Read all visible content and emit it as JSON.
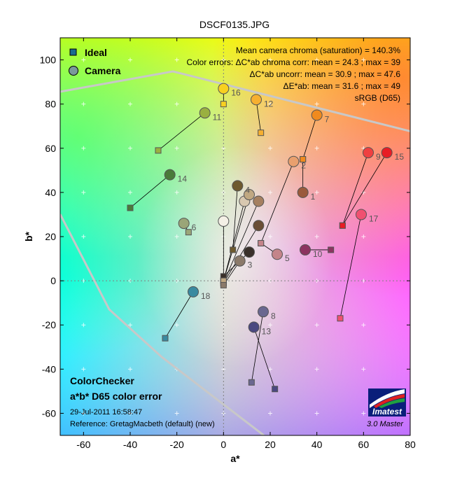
{
  "chart_data": {
    "type": "scatter",
    "title": "DSCF0135.JPG",
    "xlabel": "a*",
    "ylabel": "b*",
    "xlim": [
      -70,
      80
    ],
    "ylim": [
      -70,
      110
    ],
    "x_ticks": [
      "-60",
      "-40",
      "-20",
      "0",
      "20",
      "40",
      "60",
      "80"
    ],
    "y_ticks": [
      "-60",
      "-40",
      "-20",
      "0",
      "20",
      "40",
      "60",
      "80",
      "100"
    ],
    "grid": true,
    "legend": {
      "placement": "top-left",
      "entries": [
        "Ideal",
        "Camera"
      ]
    },
    "stats_lines": [
      "Mean camera chroma (saturation) = 140.3%",
      "Color errors: ΔC*ab chroma corr:  mean = 24.3 ;  max = 39",
      "ΔC*ab uncorr:  mean = 30.9 ;  max = 47.6",
      "ΔE*ab:  mean = 31.6 ;  max = 49",
      "sRGB (D65)"
    ],
    "bottom_text": {
      "line1": "ColorChecker",
      "line2": "a*b* D65 color error",
      "date": "29-Jul-2011 16:58:47",
      "reference": "Reference: GretagMacbeth (default) (new)"
    },
    "logo": {
      "name": "Imatest",
      "version": "3.0  Master"
    },
    "patches": [
      {
        "label": "1",
        "ideal": [
          34,
          55
        ],
        "camera": [
          34,
          40
        ],
        "color": "#9a5a3c"
      },
      {
        "label": "2",
        "ideal": [
          16,
          17
        ],
        "camera": [
          30,
          54
        ],
        "color": "#e9a06e"
      },
      {
        "label": "3",
        "ideal": [
          0,
          -2
        ],
        "camera": [
          7,
          9
        ],
        "color": "#8b7a6a"
      },
      {
        "label": "4",
        "ideal": [
          4,
          14
        ],
        "camera": [
          6,
          43
        ],
        "color": "#6e5a2e"
      },
      {
        "label": "5",
        "ideal": [
          16,
          17
        ],
        "camera": [
          23,
          12
        ],
        "color": "#c4848a"
      },
      {
        "label": "6",
        "ideal": [
          -15,
          22
        ],
        "camera": [
          -17,
          26
        ],
        "color": "#9aa578"
      },
      {
        "label": "7",
        "ideal": [
          34,
          55
        ],
        "camera": [
          40,
          75
        ],
        "color": "#f08a1e"
      },
      {
        "label": "8",
        "ideal": [
          12,
          -46
        ],
        "camera": [
          17,
          -14
        ],
        "color": "#6a6890"
      },
      {
        "label": "9",
        "ideal": [
          51,
          25
        ],
        "camera": [
          62,
          58
        ],
        "color": "#f04040"
      },
      {
        "label": "10",
        "ideal": [
          46,
          14
        ],
        "camera": [
          35,
          14
        ],
        "color": "#8c3460"
      },
      {
        "label": "11",
        "ideal": [
          -28,
          59
        ],
        "camera": [
          -8,
          76
        ],
        "color": "#9ab040"
      },
      {
        "label": "12",
        "ideal": [
          16,
          67
        ],
        "camera": [
          14,
          82
        ],
        "color": "#f6b030"
      },
      {
        "label": "13",
        "ideal": [
          22,
          -49
        ],
        "camera": [
          13,
          -21
        ],
        "color": "#4a4880"
      },
      {
        "label": "14",
        "ideal": [
          -40,
          33
        ],
        "camera": [
          -23,
          48
        ],
        "color": "#4a7a3a"
      },
      {
        "label": "15",
        "ideal": [
          51,
          25
        ],
        "camera": [
          70,
          58
        ],
        "color": "#e81c24"
      },
      {
        "label": "16",
        "ideal": [
          0,
          80
        ],
        "camera": [
          0,
          87
        ],
        "color": "#f8d020"
      },
      {
        "label": "17",
        "ideal": [
          50,
          -17
        ],
        "camera": [
          59,
          30
        ],
        "color": "#f05070"
      },
      {
        "label": "18",
        "ideal": [
          -25,
          -26
        ],
        "camera": [
          -13,
          -5
        ],
        "color": "#3a8aa0"
      }
    ],
    "neutral_points": [
      {
        "ideal": [
          0,
          0
        ],
        "camera": [
          0,
          27
        ],
        "color": "#f4f0e6"
      },
      {
        "ideal": [
          0,
          2
        ],
        "camera": [
          11,
          13
        ],
        "color": "#3a302a"
      },
      {
        "ideal": [
          0,
          0
        ],
        "camera": [
          9,
          36
        ],
        "color": "#d8c8b0"
      },
      {
        "ideal": [
          0,
          -1
        ],
        "camera": [
          15,
          36
        ],
        "color": "#a58060"
      },
      {
        "ideal": [
          0,
          -1
        ],
        "camera": [
          15,
          25
        ],
        "color": "#6b4e36"
      },
      {
        "ideal": [
          0,
          0
        ],
        "camera": [
          11,
          39
        ],
        "color": "#c0a882"
      }
    ]
  }
}
